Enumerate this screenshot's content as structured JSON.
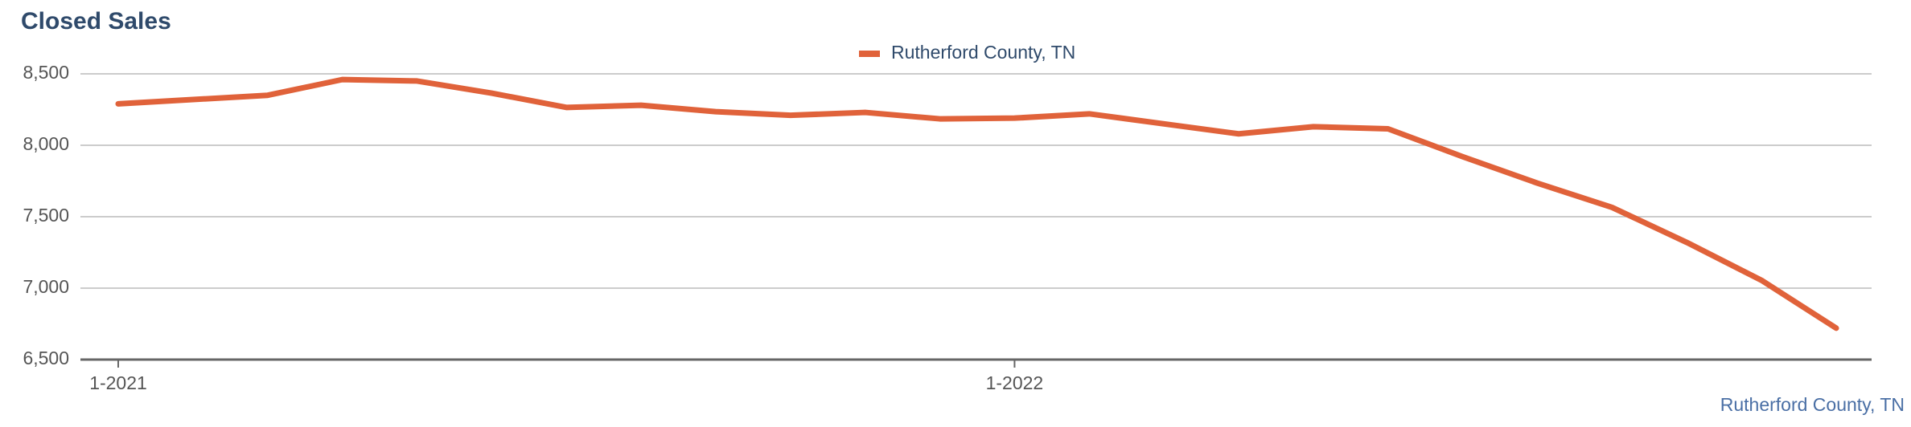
{
  "chart_data": {
    "type": "line",
    "title": "Closed Sales",
    "categories": [
      "1-2021",
      null,
      null,
      null,
      null,
      null,
      null,
      null,
      null,
      null,
      null,
      null,
      "1-2022",
      null,
      null,
      null,
      null,
      null,
      null,
      null,
      null,
      null,
      null,
      null
    ],
    "series": [
      {
        "name": "Rutherford County, TN",
        "color": "#e0623a",
        "values": [
          8290,
          8320,
          8350,
          8460,
          8450,
          8365,
          8265,
          8280,
          8235,
          8210,
          8230,
          8185,
          8190,
          8220,
          8150,
          8080,
          8130,
          8115,
          7920,
          7735,
          7565,
          7320,
          7055,
          6720
        ]
      }
    ],
    "ylim": [
      6500,
      8500
    ],
    "yticks": [
      {
        "value": 6500,
        "label": "6,500"
      },
      {
        "value": 7000,
        "label": "7,000"
      },
      {
        "value": 7500,
        "label": "7,500"
      },
      {
        "value": 8000,
        "label": "8,000"
      },
      {
        "value": 8500,
        "label": "8,500"
      }
    ],
    "grid": true,
    "legend": "top",
    "footer_label": "Rutherford County, TN"
  }
}
